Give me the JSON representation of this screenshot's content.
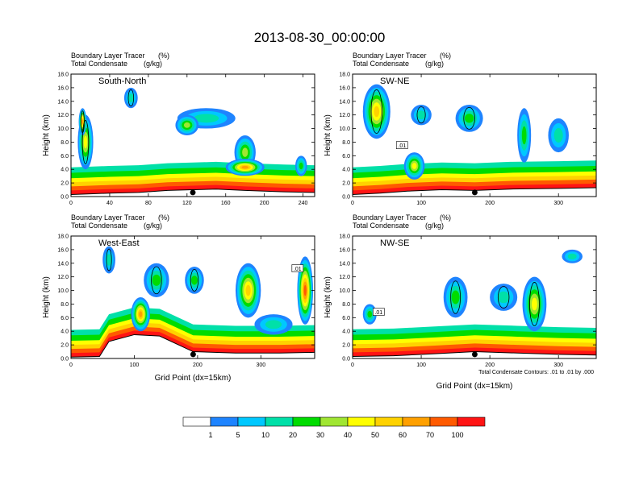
{
  "figure": {
    "title": "2013-08-30_00:00:00",
    "footnote": "Total Condensate Contours: .01 to .01 by .000"
  },
  "colors": {
    "levels": [
      "#ffffff",
      "#1e84ff",
      "#00c8ff",
      "#00e0a8",
      "#00dc00",
      "#a0e632",
      "#ffff00",
      "#ffd200",
      "#ffa000",
      "#ff5a00",
      "#ff1414"
    ],
    "frame": "#000000",
    "contour": "#000000"
  },
  "colorbar": {
    "labels": [
      "1",
      "5",
      "10",
      "20",
      "30",
      "40",
      "50",
      "60",
      "70",
      "100"
    ]
  },
  "chart_data": [
    {
      "type": "heatmap",
      "panel_label": "South-North",
      "meta_left_1": "Boundary Layer Tracer",
      "meta_right_1": "(%)",
      "meta_left_2": "Total Condensate",
      "meta_right_2": "(g/kg)",
      "ylabel": "Height (km)",
      "xlabel": "",
      "xlim": [
        0,
        252
      ],
      "ylim": [
        0,
        18
      ],
      "xticks": [
        0,
        40,
        80,
        120,
        160,
        200,
        240
      ],
      "yticks": [
        "0.0",
        "2.0",
        "4.0",
        "6.0",
        "8.0",
        "10.0",
        "12.0",
        "14.0",
        "16.0",
        "18.0"
      ],
      "marker_x": 126,
      "terrain": [
        [
          0,
          0.3
        ],
        [
          20,
          0.4
        ],
        [
          40,
          0.5
        ],
        [
          70,
          0.6
        ],
        [
          100,
          0.9
        ],
        [
          126,
          1.0
        ],
        [
          150,
          1.1
        ],
        [
          180,
          0.9
        ],
        [
          220,
          0.7
        ],
        [
          252,
          0.6
        ]
      ],
      "plumes": [
        {
          "x": 15,
          "y": 8,
          "w": 16,
          "h": 8,
          "tracer": 40
        },
        {
          "x": 12,
          "y": 11,
          "w": 8,
          "h": 4,
          "tracer": 60
        },
        {
          "x": 62,
          "y": 14.5,
          "w": 14,
          "h": 3,
          "tracer": 10
        },
        {
          "x": 140,
          "y": 11.5,
          "w": 60,
          "h": 3,
          "tracer": 10
        },
        {
          "x": 120,
          "y": 10.5,
          "w": 24,
          "h": 3,
          "tracer": 30
        },
        {
          "x": 180,
          "y": 6.5,
          "w": 22,
          "h": 5,
          "tracer": 30
        },
        {
          "x": 180,
          "y": 4.3,
          "w": 40,
          "h": 2.5,
          "tracer": 60
        },
        {
          "x": 238,
          "y": 4.5,
          "w": 12,
          "h": 3,
          "tracer": 20
        }
      ]
    },
    {
      "type": "heatmap",
      "panel_label": "SW-NE",
      "meta_left_1": "Boundary Layer Tracer",
      "meta_right_1": "(%)",
      "meta_left_2": "Total Condensate",
      "meta_right_2": "(g/kg)",
      "ylabel": "Height (km)",
      "xlabel": "",
      "xlim": [
        0,
        355
      ],
      "ylim": [
        0,
        18
      ],
      "xticks": [
        0,
        100,
        200,
        300
      ],
      "yticks": [
        "0.0",
        "2.0",
        "4.0",
        "6.0",
        "8.0",
        "10.0",
        "12.0",
        "14.0",
        "16.0",
        "18.0"
      ],
      "marker_x": 178,
      "contour_labels": [
        {
          "text": ".01",
          "x": 72,
          "y": 7.5
        }
      ],
      "terrain": [
        [
          0,
          0.3
        ],
        [
          40,
          0.5
        ],
        [
          80,
          0.8
        ],
        [
          130,
          1.0
        ],
        [
          178,
          0.9
        ],
        [
          230,
          1.1
        ],
        [
          300,
          1.2
        ],
        [
          355,
          1.3
        ]
      ],
      "plumes": [
        {
          "x": 35,
          "y": 12.5,
          "w": 40,
          "h": 8,
          "tracer": 50
        },
        {
          "x": 100,
          "y": 12,
          "w": 30,
          "h": 3,
          "tracer": 10
        },
        {
          "x": 170,
          "y": 11.5,
          "w": 40,
          "h": 4,
          "tracer": 20
        },
        {
          "x": 250,
          "y": 9,
          "w": 20,
          "h": 8,
          "tracer": 20
        },
        {
          "x": 300,
          "y": 9,
          "w": 30,
          "h": 5,
          "tracer": 10
        },
        {
          "x": 90,
          "y": 4.5,
          "w": 30,
          "h": 4,
          "tracer": 40
        }
      ]
    },
    {
      "type": "heatmap",
      "panel_label": "West-East",
      "meta_left_1": "Boundary Layer Tracer",
      "meta_right_1": "(%)",
      "meta_left_2": "Total Condensate",
      "meta_right_2": "(g/kg)",
      "ylabel": "Height (km)",
      "xlabel": "Grid Point (dx=15km)",
      "xlim": [
        0,
        385
      ],
      "ylim": [
        0,
        18
      ],
      "xticks": [
        0,
        100,
        200,
        300
      ],
      "yticks": [
        "0.0",
        "2.0",
        "4.0",
        "6.0",
        "8.0",
        "10.0",
        "12.0",
        "14.0",
        "16.0",
        "18.0"
      ],
      "marker_x": 193,
      "contour_labels": [
        {
          "text": ".01",
          "x": 358,
          "y": 13.2
        }
      ],
      "terrain": [
        [
          0,
          0.2
        ],
        [
          45,
          0.3
        ],
        [
          60,
          2.5
        ],
        [
          100,
          3.5
        ],
        [
          140,
          3.3
        ],
        [
          193,
          1.0
        ],
        [
          260,
          0.8
        ],
        [
          330,
          0.8
        ],
        [
          385,
          0.9
        ]
      ],
      "plumes": [
        {
          "x": 60,
          "y": 14.5,
          "w": 20,
          "h": 4,
          "tracer": 10
        },
        {
          "x": 135,
          "y": 11.5,
          "w": 40,
          "h": 5,
          "tracer": 20
        },
        {
          "x": 195,
          "y": 11.5,
          "w": 30,
          "h": 4,
          "tracer": 20
        },
        {
          "x": 280,
          "y": 10,
          "w": 40,
          "h": 8,
          "tracer": 50
        },
        {
          "x": 320,
          "y": 5,
          "w": 60,
          "h": 3,
          "tracer": 10
        },
        {
          "x": 370,
          "y": 10,
          "w": 25,
          "h": 10,
          "tracer": 70
        },
        {
          "x": 110,
          "y": 6.5,
          "w": 30,
          "h": 5,
          "tracer": 60
        }
      ]
    },
    {
      "type": "heatmap",
      "panel_label": "NW-SE",
      "meta_left_1": "Boundary Layer Tracer",
      "meta_right_1": "(%)",
      "meta_left_2": "Total Condensate",
      "meta_right_2": "(g/kg)",
      "ylabel": "Height (km)",
      "xlabel": "Grid Point (dx=15km)",
      "xlim": [
        0,
        355
      ],
      "ylim": [
        0,
        18
      ],
      "xticks": [
        0,
        100,
        200,
        300
      ],
      "yticks": [
        "0.0",
        "2.0",
        "4.0",
        "6.0",
        "8.0",
        "10.0",
        "12.0",
        "14.0",
        "16.0",
        "18.0"
      ],
      "marker_x": 178,
      "contour_labels": [
        {
          "text": ".01",
          "x": 38,
          "y": 6.8
        }
      ],
      "terrain": [
        [
          0,
          0.3
        ],
        [
          60,
          0.4
        ],
        [
          120,
          0.7
        ],
        [
          178,
          1.0
        ],
        [
          240,
          0.8
        ],
        [
          300,
          0.6
        ],
        [
          355,
          0.5
        ]
      ],
      "plumes": [
        {
          "x": 150,
          "y": 9,
          "w": 35,
          "h": 6,
          "tracer": 20
        },
        {
          "x": 220,
          "y": 9,
          "w": 40,
          "h": 4,
          "tracer": 10
        },
        {
          "x": 265,
          "y": 8,
          "w": 35,
          "h": 8,
          "tracer": 40
        },
        {
          "x": 320,
          "y": 15,
          "w": 30,
          "h": 2,
          "tracer": 10
        },
        {
          "x": 25,
          "y": 6.5,
          "w": 20,
          "h": 3,
          "tracer": 20
        }
      ]
    }
  ]
}
